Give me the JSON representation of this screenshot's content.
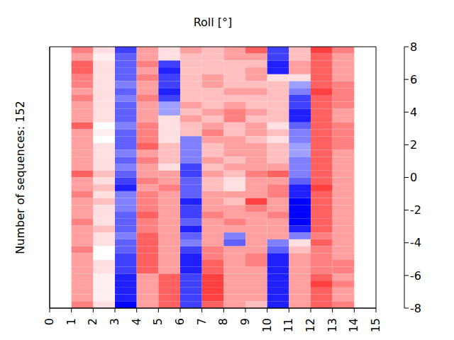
{
  "chart_data": {
    "type": "heatmap",
    "title": "Roll [°]",
    "ylabel": "Number of sequences: 152",
    "xlim": [
      0,
      15
    ],
    "xticks": [
      0,
      1,
      2,
      3,
      4,
      5,
      6,
      7,
      8,
      9,
      10,
      11,
      12,
      13,
      14,
      15
    ],
    "ylim": [
      0,
      38
    ],
    "tick_labels": "x",
    "x_edges": [
      1,
      2,
      3,
      4,
      5,
      6,
      7,
      8,
      9,
      10,
      11,
      12,
      13,
      14
    ],
    "cells": [
      [
        -4,
        -1,
        6,
        -3,
        -1,
        -3,
        -2,
        -3,
        -5,
        6,
        -2,
        -6,
        -4
      ],
      [
        -3,
        -0.5,
        5,
        -3,
        -1,
        -2,
        -2,
        -3,
        -3,
        6,
        -2,
        -5,
        -3
      ],
      [
        -5,
        -1,
        5,
        -4,
        6,
        -2,
        -2,
        -2,
        -2,
        7,
        -3,
        -5,
        -3
      ],
      [
        -5,
        -1,
        5,
        -3,
        7,
        -2,
        -2,
        -2,
        -3,
        7,
        -3,
        -5,
        -3
      ],
      [
        -4,
        -1,
        5,
        -4,
        6,
        -2,
        -3,
        -2,
        -3,
        -1,
        -1,
        -5,
        -3
      ],
      [
        -4,
        -1,
        4,
        -3,
        6,
        -2,
        -3,
        -2,
        -2,
        -2,
        3,
        -5,
        -4
      ],
      [
        -3,
        -1,
        5,
        -3,
        7,
        -2,
        -2,
        -3,
        -3,
        -2,
        4,
        -6,
        -4
      ],
      [
        -4,
        -1,
        4,
        -4,
        6,
        -2,
        -2,
        -2,
        -2,
        -2,
        6,
        -5,
        -4
      ],
      [
        -3,
        -1,
        5,
        -3,
        3,
        -3,
        -2,
        -3,
        -2,
        -2,
        6,
        -5,
        -4
      ],
      [
        -3,
        -1,
        5,
        -3,
        3,
        -2,
        -3,
        -4,
        -3,
        -2,
        7,
        -5,
        -3
      ],
      [
        -3,
        -1,
        5,
        -3,
        -1,
        -3,
        -2,
        -4,
        -2,
        -2,
        7,
        -5,
        -3
      ],
      [
        -5,
        0,
        4,
        -4,
        -1,
        -2,
        -3,
        -2,
        -3,
        -1,
        5,
        -5,
        -4
      ],
      [
        -3,
        -0.5,
        5,
        -4,
        -1,
        -2,
        -4,
        -2,
        -3,
        -2,
        4,
        -5,
        -4
      ],
      [
        -3,
        0,
        5,
        -4,
        -1,
        4,
        -3,
        -3,
        -2,
        -1,
        4,
        -5,
        -4
      ],
      [
        -3,
        -1,
        5,
        -5,
        -2,
        4,
        -2,
        -3,
        -3,
        -2,
        3,
        -5,
        -4
      ],
      [
        -3,
        -1,
        4,
        -3,
        -2,
        4,
        -2,
        -3,
        -3,
        -2,
        3,
        -5,
        -3
      ],
      [
        -3,
        -1,
        5,
        -4,
        -2,
        4,
        -3,
        -2,
        -3,
        -2,
        4,
        -5,
        -3
      ],
      [
        -3,
        -1,
        4,
        -3,
        -1,
        6,
        -2,
        -3,
        -3,
        -3,
        4,
        -5,
        -3
      ],
      [
        -5,
        -2,
        5,
        -3,
        -3,
        6,
        -3,
        -2,
        -4,
        -5,
        4,
        -5,
        -3
      ],
      [
        -3,
        -1,
        6,
        -4,
        -3,
        5,
        -2,
        -1,
        -3,
        -3,
        5,
        -5,
        -3
      ],
      [
        -3,
        -2,
        7,
        -3,
        -4,
        5,
        -2,
        -1,
        -3,
        -4,
        7,
        -6,
        -3
      ],
      [
        -4,
        -1,
        4,
        -4,
        -3,
        5,
        -3,
        -3,
        -3,
        -4,
        7,
        -5,
        -3
      ],
      [
        -3,
        -2,
        4,
        -4,
        -3,
        7,
        -3,
        -2,
        -6,
        -3,
        8,
        -5,
        -3
      ],
      [
        -3,
        -1,
        4,
        -4,
        -3,
        6,
        -3,
        -3,
        -4,
        -3,
        8,
        -5,
        -3
      ],
      [
        -3,
        -1,
        5,
        -5,
        -3,
        6,
        -4,
        -3,
        -3,
        -4,
        8,
        -5,
        -3
      ],
      [
        -4,
        -1,
        5,
        -4,
        -3,
        5,
        -3,
        -4,
        -3,
        -3,
        8,
        -5,
        -3
      ],
      [
        -3,
        -2,
        5,
        -4,
        -3,
        7,
        -3,
        -3,
        -3,
        -3,
        7,
        -5,
        -3
      ],
      [
        -3,
        -1,
        4,
        -5,
        -3,
        5,
        -3,
        4,
        -3,
        -3,
        4,
        -4,
        -3
      ],
      [
        -3,
        -1,
        5,
        -5,
        -3,
        4,
        -3,
        5,
        -3,
        4,
        -1,
        -5,
        -3
      ],
      [
        -4,
        0,
        5,
        -5,
        -3,
        6,
        -4,
        -3,
        -3,
        5,
        -2,
        -4,
        -3
      ],
      [
        -3,
        0,
        6,
        -5,
        -3,
        7,
        -4,
        -3,
        -4,
        7,
        -3,
        -4,
        -3
      ],
      [
        -3,
        -1,
        6,
        -5,
        -3,
        7,
        -5,
        -3,
        -4,
        7,
        -3,
        -4,
        -4
      ],
      [
        -3,
        -1,
        6,
        -5,
        -3,
        7,
        -5,
        -3,
        -3,
        7,
        -3,
        -4,
        -4
      ],
      [
        -3,
        -0.5,
        7,
        -3,
        -5,
        6,
        -6,
        -3,
        -3,
        7,
        -3,
        -5,
        -3
      ],
      [
        -3,
        -0.5,
        7,
        -3,
        -5,
        6,
        -6,
        -3,
        -3,
        7,
        -3,
        -6,
        -4
      ],
      [
        -3,
        -0.5,
        7,
        -3,
        -5,
        6,
        -6,
        -3,
        -3,
        7,
        -3,
        -5,
        -3
      ],
      [
        -3,
        -0.5,
        7,
        -3,
        -5,
        6,
        -6,
        -3,
        -3,
        7,
        -3,
        -5,
        -3
      ],
      [
        -4,
        -1,
        8,
        -3,
        -5,
        6,
        -5,
        -3,
        -2,
        7,
        -3,
        -5,
        -4
      ]
    ],
    "colorbar": {
      "range": [
        -8,
        8
      ],
      "ticks": [
        -8,
        -6,
        -4,
        -2,
        0,
        2,
        4,
        6,
        8
      ]
    }
  }
}
